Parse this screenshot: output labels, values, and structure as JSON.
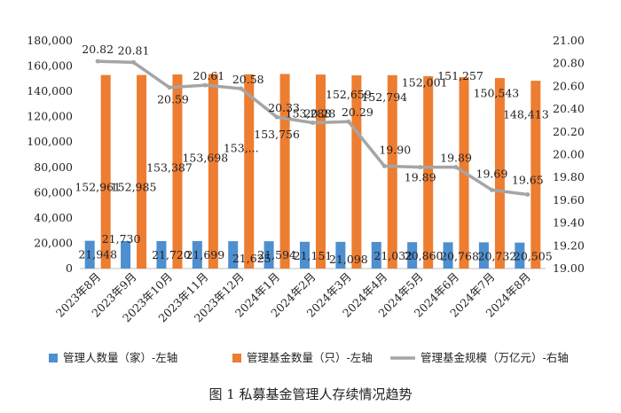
{
  "caption": "图 1  私募基金管理人存续情况趋势",
  "chart_data": {
    "type": "bar",
    "categories": [
      "2023年8月",
      "2023年9月",
      "2023年10月",
      "2023年11月",
      "2023年12月",
      "2024年1月",
      "2024年2月",
      "2024年3月",
      "2024年4月",
      "2024年5月",
      "2024年6月",
      "2024年7月",
      "2024年8月"
    ],
    "y_left": {
      "min": 0,
      "max": 180000,
      "step": 20000,
      "tick_labels": [
        "0",
        "20,000",
        "40,000",
        "60,000",
        "80,000",
        "100,000",
        "120,000",
        "140,000",
        "160,000",
        "180,000"
      ]
    },
    "y_right": {
      "min": 19.0,
      "max": 21.0,
      "step": 0.2,
      "tick_labels": [
        "19.00",
        "19.20",
        "19.40",
        "19.60",
        "19.80",
        "20.00",
        "20.20",
        "20.40",
        "20.60",
        "20.80",
        "21.00"
      ]
    },
    "series": [
      {
        "name": "管理人数量（家）-左轴",
        "type": "bar",
        "axis": "left",
        "color": "#4e8fd0",
        "values": [
          21948,
          21730,
          21720,
          21699,
          21625,
          21594,
          21151,
          21098,
          21032,
          20860,
          20768,
          20732,
          20505
        ],
        "labels": [
          "21,948",
          "21,730",
          "21,720",
          "21,699",
          "21,625",
          "21,594",
          "21,151",
          "21,098",
          "21,032",
          "20,860",
          "20,768",
          "20,732",
          "20,505"
        ]
      },
      {
        "name": "管理基金数量（只）-左轴",
        "type": "bar",
        "axis": "left",
        "color": "#ed7d31",
        "values": [
          152961,
          152985,
          153387,
          153698,
          153500,
          153756,
          153288,
          152659,
          152794,
          152001,
          151257,
          150543,
          148413
        ],
        "labels": [
          "152,961",
          "152,985",
          "153,387",
          "153,698",
          "153,...",
          "153,756",
          "153,288",
          "152,659",
          "152,794",
          "152,001",
          "151,257",
          "150,543",
          "148,413"
        ]
      },
      {
        "name": "管理基金规模（万亿元）-右轴",
        "type": "line",
        "axis": "right",
        "color": "#a5a5a5",
        "values": [
          20.82,
          20.81,
          20.59,
          20.61,
          20.58,
          20.33,
          20.28,
          20.29,
          19.9,
          19.89,
          19.89,
          19.69,
          19.65
        ],
        "labels": [
          "20.82",
          "20.81",
          "20.59",
          "20.61",
          "20.58",
          "20.33",
          "20.28",
          "20.29",
          "19.90",
          "19.89",
          "19.89",
          "19.69",
          "19.65"
        ]
      }
    ],
    "legend_position": "bottom",
    "grid": false
  }
}
